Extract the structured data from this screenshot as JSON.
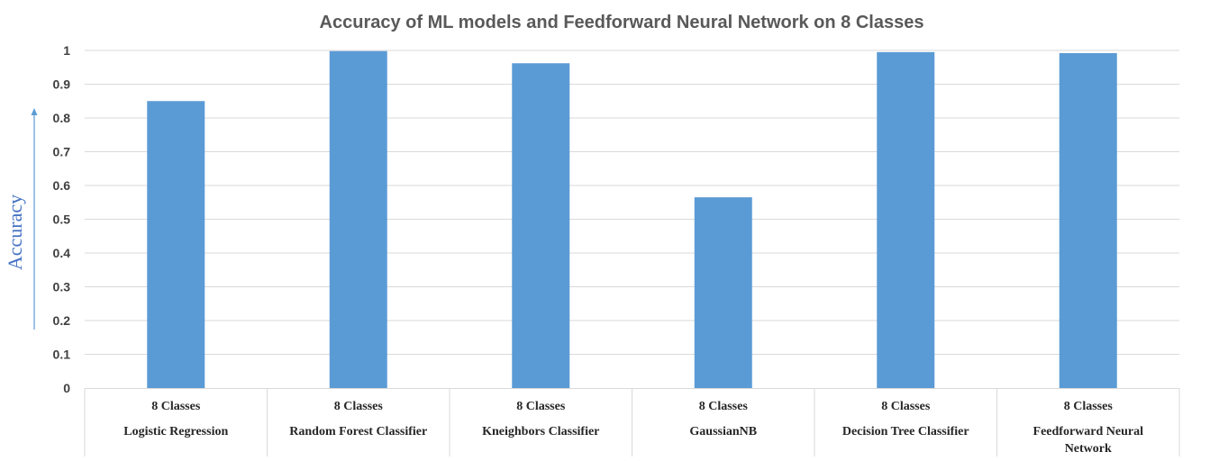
{
  "chart_data": {
    "type": "bar",
    "title": "Accuracy of ML models and Feedforward Neural Network on 8 Classes",
    "ylabel": "Accuracy",
    "xlabel": "",
    "ylim": [
      0,
      1
    ],
    "yticks": [
      "0",
      "0.1",
      "0.2",
      "0.3",
      "0.4",
      "0.5",
      "0.6",
      "0.7",
      "0.8",
      "0.9",
      "1"
    ],
    "grid": true,
    "legend": "none",
    "bar_color": "#5b9bd5",
    "ylabel_color": "#4472c4",
    "categories": [
      {
        "top": "8 Classes",
        "bottom": [
          "Logistic Regression"
        ]
      },
      {
        "top": "8 Classes",
        "bottom": [
          "Random Forest Classifier"
        ]
      },
      {
        "top": "8 Classes",
        "bottom": [
          "Kneighbors Classifier"
        ]
      },
      {
        "top": "8 Classes",
        "bottom": [
          "GaussianNB"
        ]
      },
      {
        "top": "8 Classes",
        "bottom": [
          "Decision Tree Classifier"
        ]
      },
      {
        "top": "8 Classes",
        "bottom": [
          "Feedforward Neural",
          "Network"
        ]
      }
    ],
    "values": [
      0.85,
      0.998,
      0.962,
      0.565,
      0.995,
      0.992
    ]
  }
}
